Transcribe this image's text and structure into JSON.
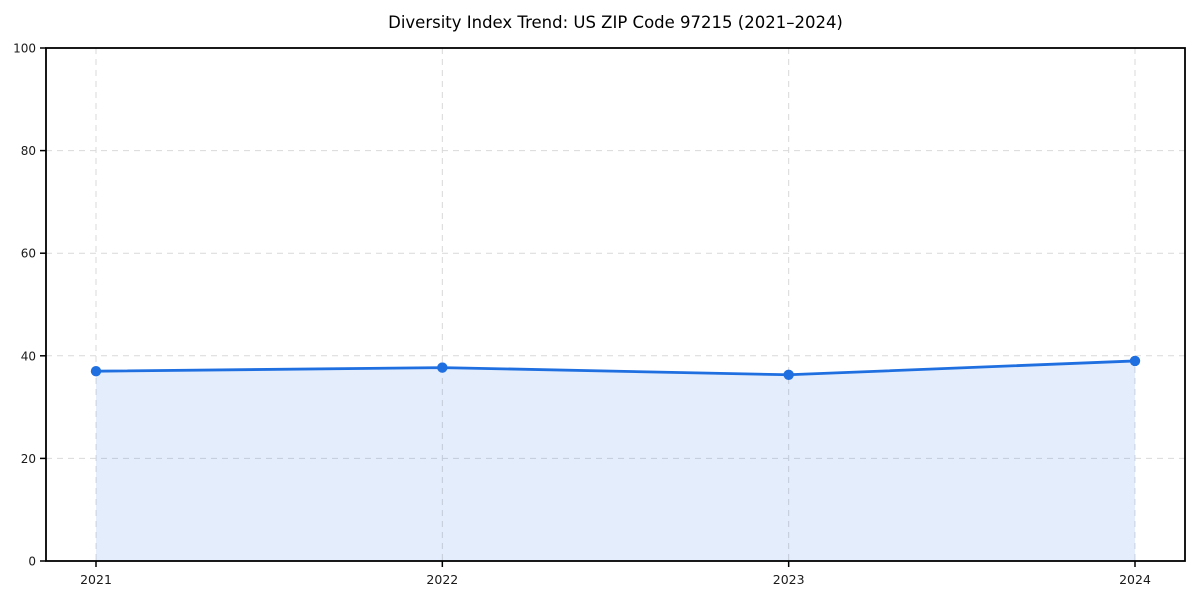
{
  "chart_data": {
    "type": "line",
    "title": "Diversity Index Trend: US ZIP Code 97215 (2021–2024)",
    "categories": [
      "2021",
      "2022",
      "2023",
      "2024"
    ],
    "values": [
      37.0,
      37.7,
      36.3,
      39.0
    ],
    "xlabel": "",
    "ylabel": "",
    "ylim": [
      0,
      100
    ],
    "yticks": [
      0,
      20,
      40,
      60,
      80,
      100
    ],
    "grid": "dashed",
    "legend": "none",
    "area_fill": true,
    "marker": "circle",
    "colors": {
      "line": "#1f6fe0",
      "marker": "#1f6fe0",
      "fill_opacity": 0.12,
      "grid": "#d9d9d9",
      "spine": "#000000",
      "tick_text": "#1a1a1a",
      "title_text": "#000000",
      "background": "#ffffff"
    }
  }
}
